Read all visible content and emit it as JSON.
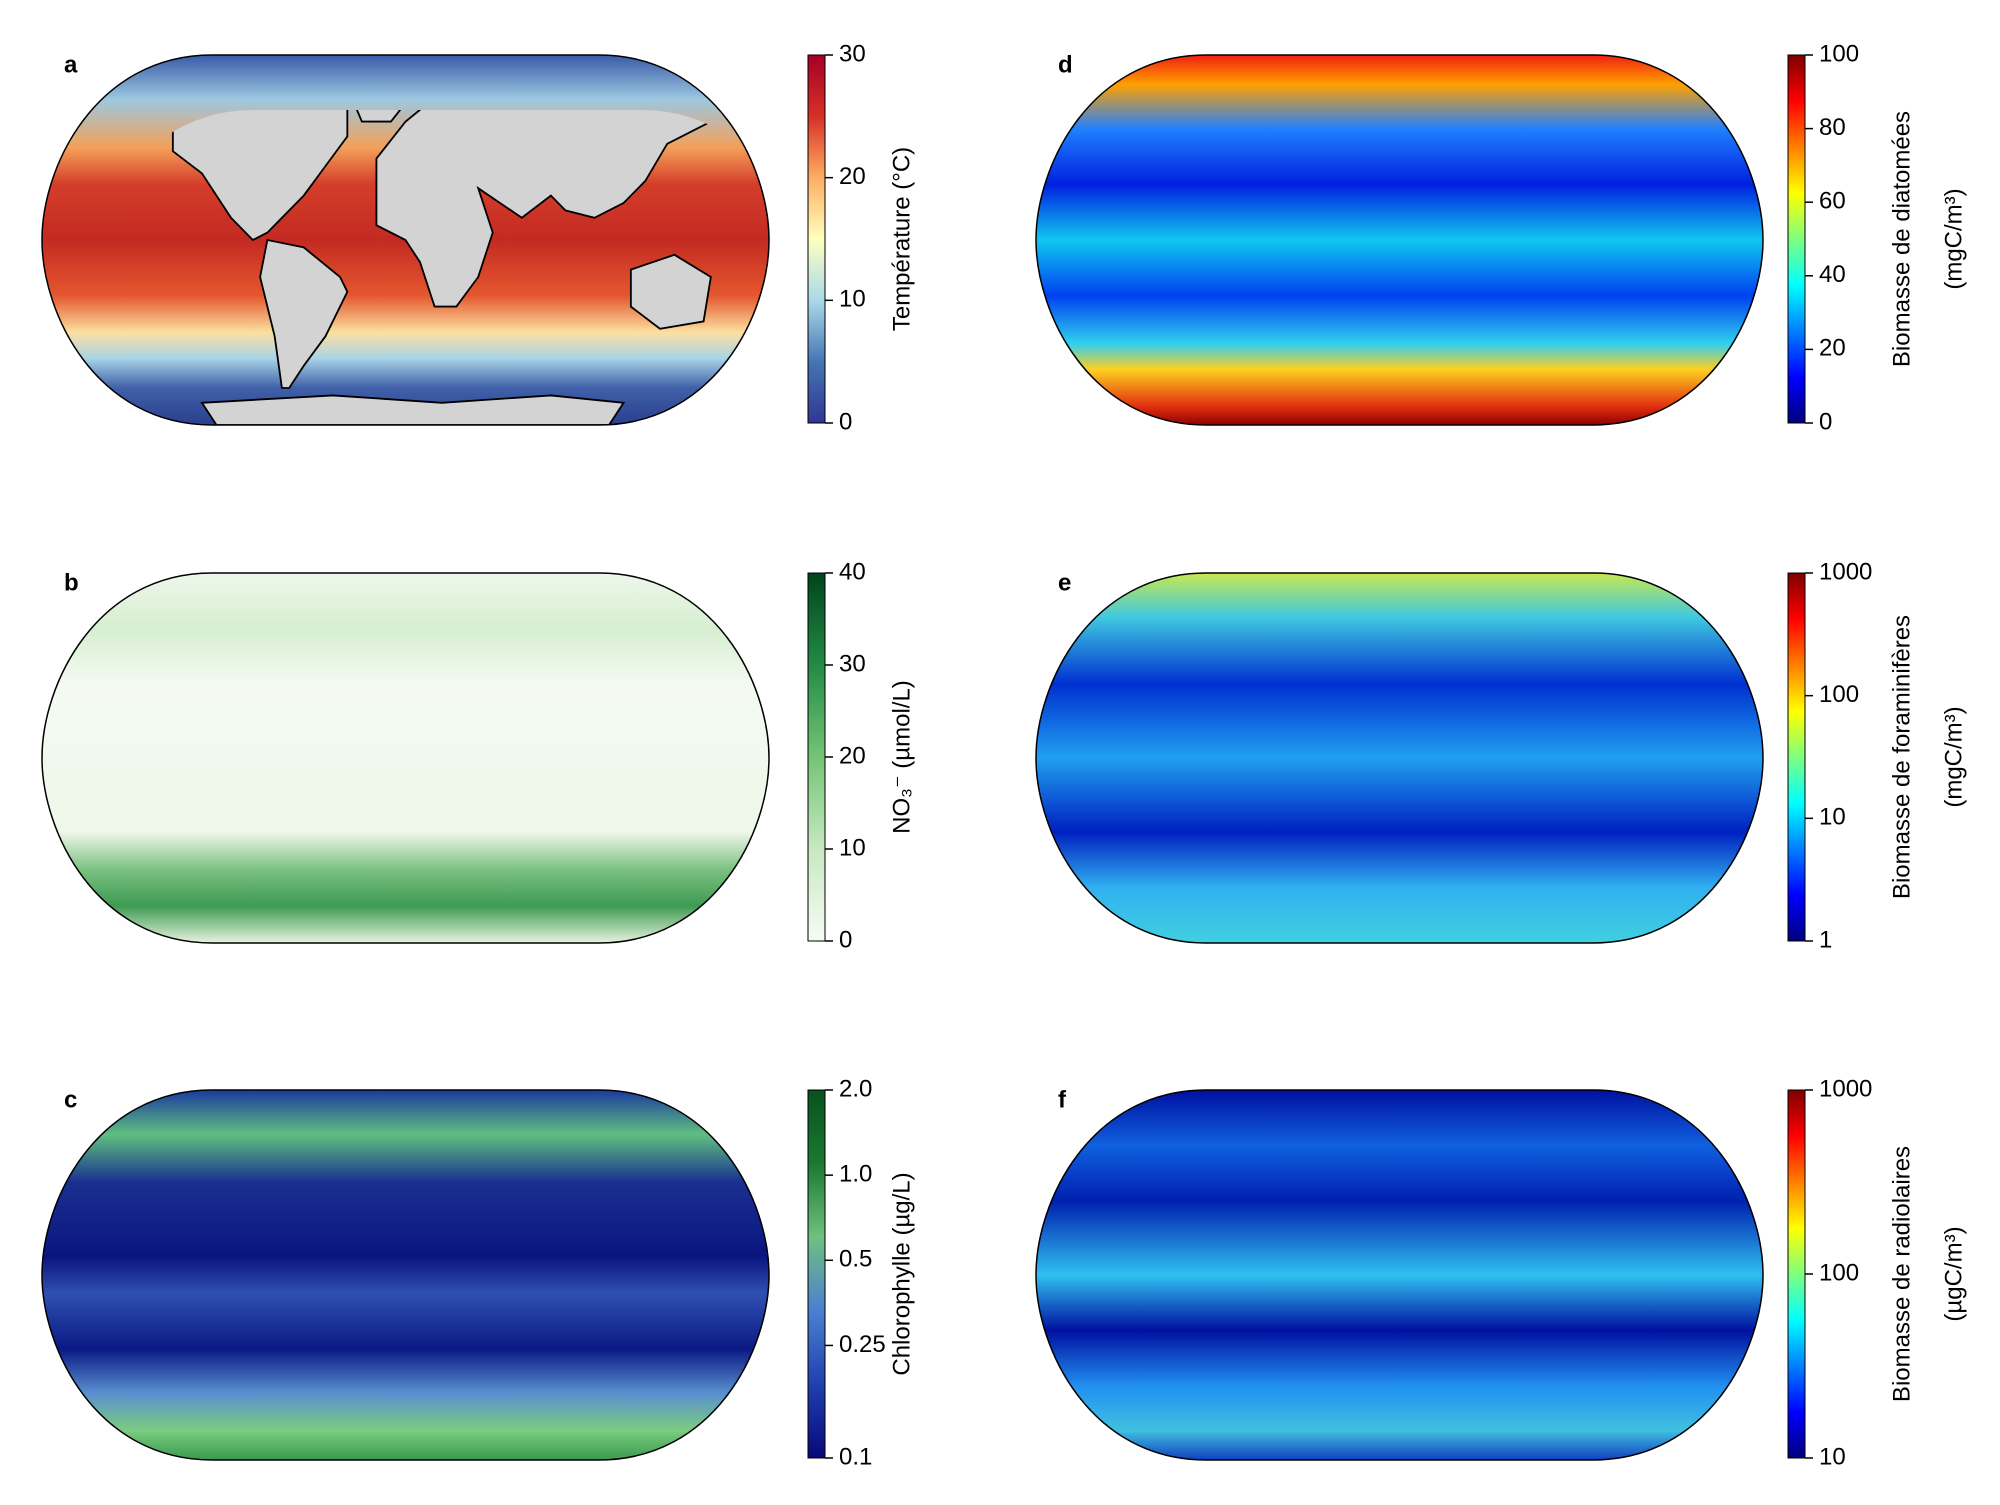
{
  "panels": [
    {
      "letter": "a",
      "colorbar": {
        "label": [
          "Température (°C)"
        ],
        "scale": "linear",
        "lim": [
          0,
          30
        ],
        "ticks": [
          0,
          10,
          20,
          30
        ],
        "colors": [
          "#313695",
          "#4575b4",
          "#abd9e9",
          "#ffffbf",
          "#fdae61",
          "#d73027",
          "#a50026"
        ]
      }
    },
    {
      "letter": "b",
      "colorbar": {
        "label": [
          "NO₃⁻ (µmol/L)"
        ],
        "scale": "linear",
        "lim": [
          0,
          40
        ],
        "ticks": [
          0,
          10,
          20,
          30,
          40
        ],
        "colors": [
          "#f7fcf5",
          "#c7e9c0",
          "#74c476",
          "#238b45",
          "#00441b"
        ]
      }
    },
    {
      "letter": "c",
      "colorbar": {
        "label": [
          "Chlorophylle (µg/L)"
        ],
        "scale": "log",
        "lim": [
          0.1,
          2.0
        ],
        "ticks": [
          0.1,
          0.25,
          0.5,
          {
            "value": 1,
            "label": "1.0"
          },
          {
            "value": 2,
            "label": "2.0"
          }
        ],
        "colors": [
          "#08087a",
          "#2040b0",
          "#4a80d0",
          "#70c080",
          "#1a7a30",
          "#0a5020"
        ]
      }
    },
    {
      "letter": "d",
      "colorbar": {
        "label": [
          "Biomasse de diatomées",
          "(mgC/m³)"
        ],
        "scale": "linear",
        "lim": [
          0,
          100
        ],
        "ticks": [
          0,
          20,
          40,
          60,
          80,
          100
        ],
        "colors": [
          "#00007f",
          "#0000ff",
          "#007fff",
          "#00ffff",
          "#7fff7f",
          "#ffff00",
          "#ff7f00",
          "#ff0000",
          "#7f0000"
        ]
      }
    },
    {
      "letter": "e",
      "colorbar": {
        "label": [
          "Biomasse de foraminifères",
          "(mgC/m³)"
        ],
        "scale": "log",
        "lim": [
          1,
          1000
        ],
        "ticks": [
          1,
          10,
          100,
          1000
        ],
        "colors": [
          "#00007f",
          "#0000ff",
          "#007fff",
          "#00ffff",
          "#7fff7f",
          "#ffff00",
          "#ff7f00",
          "#ff0000",
          "#7f0000"
        ]
      }
    },
    {
      "letter": "f",
      "colorbar": {
        "label": [
          "Biomasse de radiolaires",
          "(µgC/m³)"
        ],
        "scale": "log",
        "lim": [
          10,
          1000
        ],
        "ticks": [
          10,
          100,
          1000
        ],
        "colors": [
          "#00007f",
          "#0000ff",
          "#007fff",
          "#00ffff",
          "#7fff7f",
          "#ffff00",
          "#ff7f00",
          "#ff0000",
          "#7f0000"
        ]
      }
    }
  ]
}
